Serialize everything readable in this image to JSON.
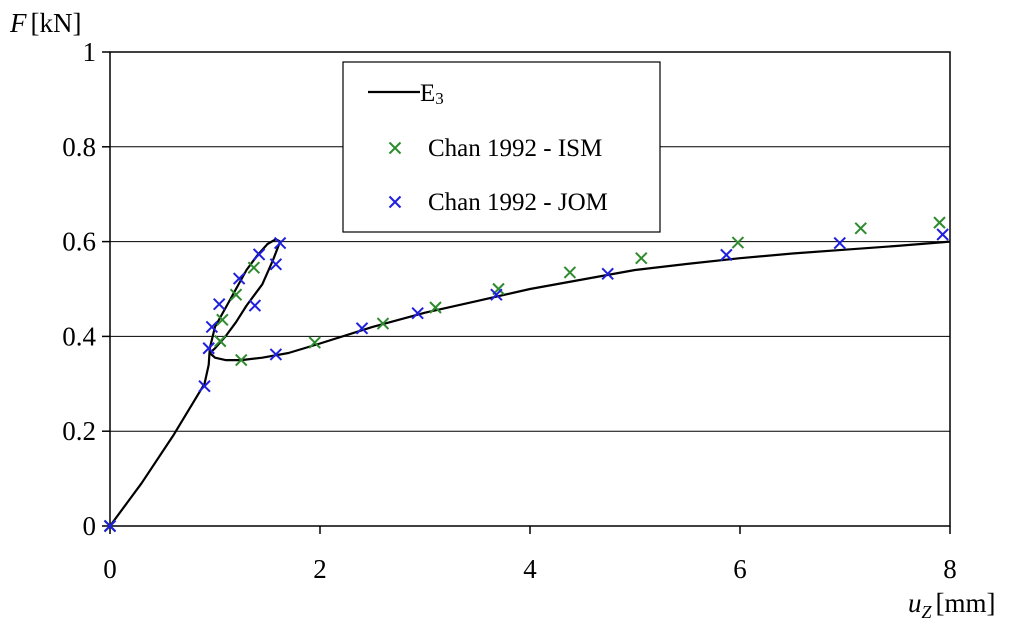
{
  "chart_data": {
    "type": "scatter",
    "title": "",
    "ylabel": {
      "symbol": "F",
      "unit": "[kN]"
    },
    "xlabel": {
      "symbol": "u",
      "subscript": "Z",
      "unit": "[mm]"
    },
    "xlim": [
      0,
      8
    ],
    "ylim": [
      0,
      1
    ],
    "xticks": [
      "0",
      "2",
      "4",
      "6",
      "8"
    ],
    "yticks": [
      "0",
      "0.2",
      "0.4",
      "0.6",
      "0.8",
      "1"
    ],
    "grid": "horizontal",
    "legend_position": "top-center",
    "series": [
      {
        "name": "E",
        "name_subscript": "3",
        "kind": "line",
        "color": "#000000",
        "points": [
          [
            0,
            0
          ],
          [
            0.3,
            0.09
          ],
          [
            0.6,
            0.19
          ],
          [
            0.9,
            0.3
          ],
          [
            0.94,
            0.34
          ],
          [
            0.95,
            0.375
          ],
          [
            1.0,
            0.42
          ],
          [
            1.1,
            0.46
          ],
          [
            1.2,
            0.5
          ],
          [
            1.3,
            0.54
          ],
          [
            1.4,
            0.57
          ],
          [
            1.5,
            0.595
          ],
          [
            1.58,
            0.605
          ],
          [
            1.62,
            0.6
          ],
          [
            1.55,
            0.56
          ],
          [
            1.45,
            0.51
          ],
          [
            1.3,
            0.465
          ],
          [
            1.2,
            0.43
          ],
          [
            1.1,
            0.4
          ],
          [
            1.0,
            0.375
          ],
          [
            0.95,
            0.365
          ],
          [
            1.0,
            0.355
          ],
          [
            1.1,
            0.35
          ],
          [
            1.25,
            0.35
          ],
          [
            1.45,
            0.355
          ],
          [
            1.7,
            0.365
          ],
          [
            2.0,
            0.385
          ],
          [
            2.5,
            0.42
          ],
          [
            3.0,
            0.45
          ],
          [
            3.5,
            0.475
          ],
          [
            4.0,
            0.5
          ],
          [
            4.5,
            0.52
          ],
          [
            5.0,
            0.54
          ],
          [
            5.5,
            0.553
          ],
          [
            6.0,
            0.565
          ],
          [
            6.5,
            0.575
          ],
          [
            7.0,
            0.583
          ],
          [
            7.5,
            0.591
          ],
          [
            8.0,
            0.6
          ]
        ]
      },
      {
        "name": "Chan 1992 - ISM",
        "kind": "scatter",
        "color": "#2e8b2e",
        "points": [
          [
            0,
            0
          ],
          [
            1.05,
            0.39
          ],
          [
            1.07,
            0.435
          ],
          [
            1.2,
            0.488
          ],
          [
            1.37,
            0.545
          ],
          [
            1.25,
            0.35
          ],
          [
            1.95,
            0.387
          ],
          [
            2.6,
            0.427
          ],
          [
            3.1,
            0.461
          ],
          [
            3.7,
            0.5
          ],
          [
            4.38,
            0.535
          ],
          [
            5.06,
            0.565
          ],
          [
            5.98,
            0.598
          ],
          [
            7.15,
            0.628
          ],
          [
            7.9,
            0.64
          ]
        ]
      },
      {
        "name": "Chan 1992 - JOM",
        "kind": "scatter",
        "color": "#1f1fdd",
        "points": [
          [
            0,
            0
          ],
          [
            0.9,
            0.295
          ],
          [
            0.94,
            0.375
          ],
          [
            0.97,
            0.42
          ],
          [
            1.04,
            0.468
          ],
          [
            1.23,
            0.522
          ],
          [
            1.42,
            0.573
          ],
          [
            1.62,
            0.597
          ],
          [
            1.58,
            0.552
          ],
          [
            1.38,
            0.465
          ],
          [
            1.58,
            0.362
          ],
          [
            2.4,
            0.417
          ],
          [
            2.93,
            0.449
          ],
          [
            3.68,
            0.488
          ],
          [
            4.74,
            0.532
          ],
          [
            5.87,
            0.572
          ],
          [
            6.95,
            0.597
          ],
          [
            7.93,
            0.615
          ]
        ]
      }
    ]
  }
}
